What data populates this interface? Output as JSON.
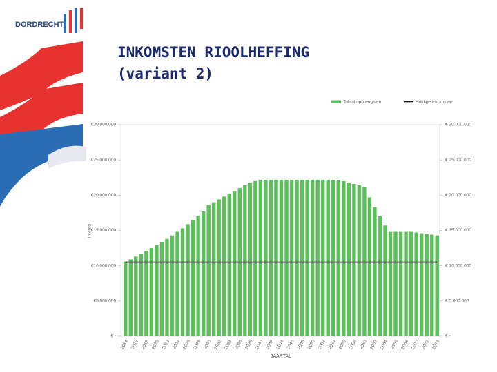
{
  "slide": {
    "logo": "DORDRECHT",
    "title": [
      "INKOMSTEN RIOOLHEFFING",
      "(variant 2)"
    ]
  },
  "chart_data": {
    "type": "bar",
    "x_label": "JAARTAL",
    "y_label": "in euro",
    "categories": [
      "2014",
      null,
      "2016",
      null,
      "2018",
      null,
      "2020",
      null,
      "2022",
      null,
      "2024",
      null,
      "2026",
      null,
      "2028",
      null,
      "2030",
      null,
      "2032",
      null,
      "2034",
      null,
      "2036",
      null,
      "2038",
      null,
      "2040",
      null,
      "2042",
      null,
      "2044",
      null,
      "2046",
      null,
      "2048",
      null,
      "2050",
      null,
      "2052",
      null,
      "2054",
      null,
      "2056",
      null,
      "2058",
      null,
      "2060",
      null,
      "2062",
      null,
      "2064",
      null,
      "2066",
      null,
      "2068",
      null,
      "2070",
      null,
      "2072",
      null,
      "2074"
    ],
    "series": [
      {
        "name": "Totaal opbrengsten",
        "color": "#5cbf5c",
        "values": [
          10600000,
          10900000,
          11300000,
          11700000,
          12100000,
          12500000,
          12900000,
          13300000,
          13800000,
          14300000,
          14800000,
          15300000,
          15900000,
          16500000,
          17100000,
          17700000,
          18600000,
          19000000,
          19400000,
          19800000,
          20200000,
          20600000,
          21000000,
          21400000,
          21700000,
          22000000,
          22200000,
          22200000,
          22200000,
          22200000,
          22200000,
          22200000,
          22200000,
          22200000,
          22200000,
          22200000,
          22200000,
          22200000,
          22200000,
          22200000,
          22200000,
          22100000,
          22000000,
          21800000,
          21600000,
          21400000,
          21100000,
          19700000,
          18300000,
          17000000,
          15700000,
          14800000,
          14800000,
          14800000,
          14800000,
          14800000,
          14700000,
          14600000,
          14500000,
          14400000,
          14300000
        ]
      },
      {
        "name": "Huidige inkomsten",
        "color": "#111111",
        "type": "line",
        "axis": "y2",
        "values": [
          10500000,
          10500000,
          10500000,
          10500000,
          10500000,
          10500000,
          10500000,
          10500000,
          10500000,
          10500000,
          10500000,
          10500000,
          10500000,
          10500000,
          10500000,
          10500000,
          10500000,
          10500000,
          10500000,
          10500000,
          10500000,
          10500000,
          10500000,
          10500000,
          10500000,
          10500000,
          10500000,
          10500000,
          10500000,
          10500000,
          10500000,
          10500000,
          10500000,
          10500000,
          10500000,
          10500000,
          10500000,
          10500000,
          10500000,
          10500000,
          10500000,
          10500000,
          10500000,
          10500000,
          10500000,
          10500000,
          10500000,
          10500000,
          10500000,
          10500000,
          10500000,
          10500000,
          10500000,
          10500000,
          10500000,
          10500000,
          10500000,
          10500000,
          10500000,
          10500000,
          10500000
        ]
      }
    ],
    "ylim": [
      0,
      30000000
    ],
    "yticks": [
      {
        "value": 0,
        "label": "€ -"
      },
      {
        "value": 5000000,
        "label": "€5.000.000"
      },
      {
        "value": 10000000,
        "label": "€10.000.000"
      },
      {
        "value": 15000000,
        "label": "€15.000.000"
      },
      {
        "value": 20000000,
        "label": "€20.000.000"
      },
      {
        "value": 25000000,
        "label": "€25.000.000"
      },
      {
        "value": 30000000,
        "label": "€30.000.000"
      }
    ],
    "y2lim": [
      0,
      30000000
    ],
    "y2ticks": [
      {
        "value": 0,
        "label": "€ -"
      },
      {
        "value": 5000000,
        "label": "€ 5.000.000"
      },
      {
        "value": 10000000,
        "label": "€ 10.000.000"
      },
      {
        "value": 15000000,
        "label": "€ 15.000.000"
      },
      {
        "value": 20000000,
        "label": "€ 20.000.000"
      },
      {
        "value": 25000000,
        "label": "€ 25.000.000"
      },
      {
        "value": 30000000,
        "label": "€ 30.000.000"
      }
    ],
    "legend": "top-right"
  }
}
